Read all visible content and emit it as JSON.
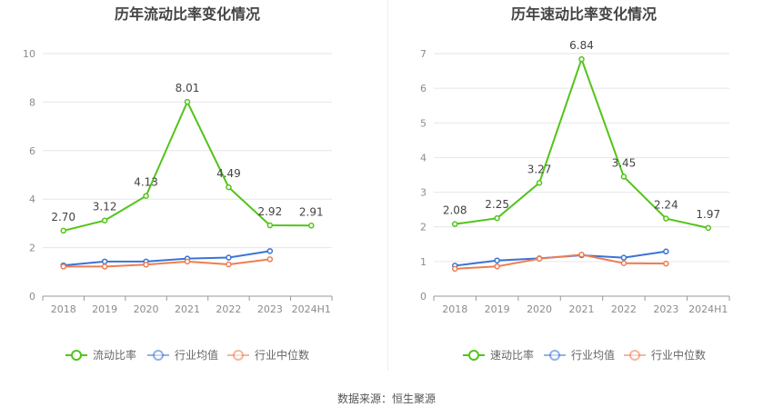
{
  "chart_data": [
    {
      "type": "line",
      "title": "历年流动比率变化情况",
      "categories": [
        "2018",
        "2019",
        "2020",
        "2021",
        "2022",
        "2023",
        "2024H1"
      ],
      "ylim": [
        0,
        10
      ],
      "yticks": [
        0,
        2,
        4,
        6,
        8,
        10
      ],
      "grid": true,
      "legend_position": "bottom",
      "series": [
        {
          "name": "流动比率",
          "color": "#52c41a",
          "values": [
            2.7,
            3.12,
            4.13,
            8.01,
            4.49,
            2.92,
            2.91
          ],
          "labels": true
        },
        {
          "name": "行业均值",
          "color": "#3b73d6",
          "values": [
            1.27,
            1.43,
            1.43,
            1.55,
            1.59,
            1.86,
            null
          ],
          "labels": false
        },
        {
          "name": "行业中位数",
          "color": "#ee7e50",
          "values": [
            1.22,
            1.22,
            1.3,
            1.43,
            1.31,
            1.52,
            null
          ],
          "labels": false
        }
      ]
    },
    {
      "type": "line",
      "title": "历年速动比率变化情况",
      "categories": [
        "2018",
        "2019",
        "2020",
        "2021",
        "2022",
        "2023",
        "2024H1"
      ],
      "ylim": [
        0,
        7
      ],
      "yticks": [
        0,
        1,
        2,
        3,
        4,
        5,
        6,
        7
      ],
      "grid": true,
      "legend_position": "bottom",
      "series": [
        {
          "name": "速动比率",
          "color": "#52c41a",
          "values": [
            2.08,
            2.25,
            3.27,
            6.84,
            3.45,
            2.24,
            1.97
          ],
          "labels": true
        },
        {
          "name": "行业均值",
          "color": "#3b73d6",
          "values": [
            0.88,
            1.03,
            1.09,
            1.18,
            1.11,
            1.29,
            null
          ],
          "labels": false
        },
        {
          "name": "行业中位数",
          "color": "#ee7e50",
          "values": [
            0.79,
            0.86,
            1.08,
            1.2,
            0.95,
            0.94,
            null
          ],
          "labels": false
        }
      ]
    }
  ],
  "footer": {
    "source": "数据来源：恒生聚源"
  }
}
